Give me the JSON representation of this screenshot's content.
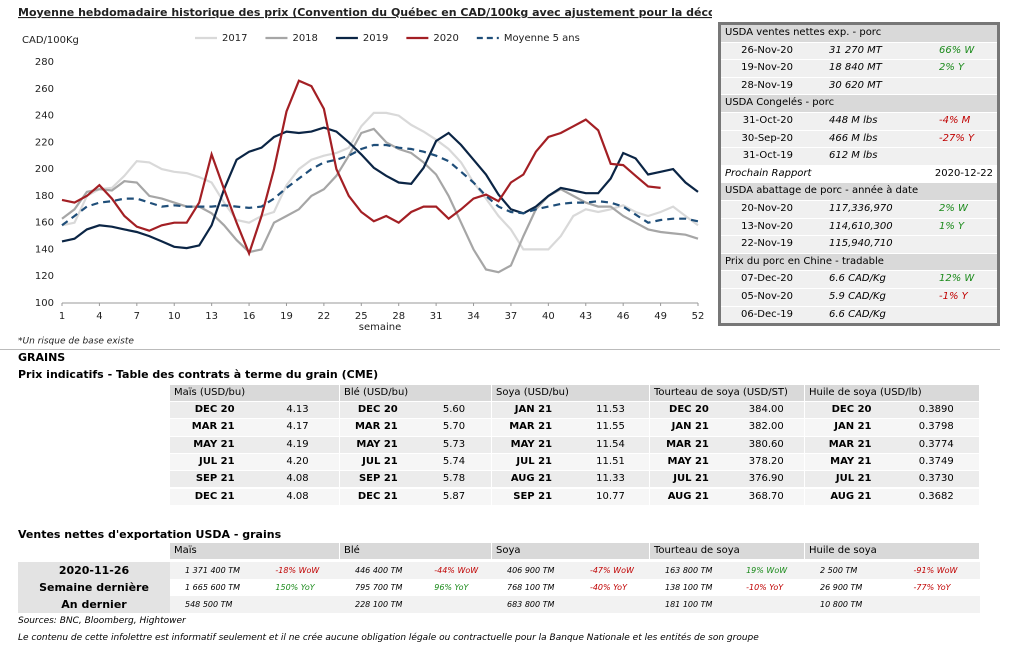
{
  "chart_data": {
    "type": "line",
    "title": "Moyenne hebdomadaire historique des prix (Convention du Québec en CAD/100kg avec ajustement pour la découpe)*",
    "y_label": "CAD/100Kg",
    "x_label": "semaine",
    "footnote": "*Un risque de base existe",
    "grid": false,
    "x": [
      1,
      2,
      3,
      4,
      5,
      6,
      7,
      8,
      9,
      10,
      11,
      12,
      13,
      14,
      15,
      16,
      17,
      18,
      19,
      20,
      21,
      22,
      23,
      24,
      25,
      26,
      27,
      28,
      29,
      30,
      31,
      32,
      33,
      34,
      35,
      36,
      37,
      38,
      39,
      40,
      41,
      42,
      43,
      44,
      45,
      46,
      47,
      48,
      49,
      50,
      51,
      52
    ],
    "xlim": [
      1,
      52
    ],
    "xticks": [
      1,
      4,
      7,
      10,
      13,
      16,
      19,
      22,
      25,
      28,
      31,
      34,
      37,
      40,
      43,
      46,
      49,
      52
    ],
    "ylim": [
      100,
      280
    ],
    "yticks": [
      100,
      120,
      140,
      160,
      180,
      200,
      220,
      240,
      260,
      280
    ],
    "series": [
      {
        "name": "2017",
        "color": "#d9d9d9",
        "line_style": "solid",
        "values": [
          158,
          160,
          180,
          185,
          186,
          195,
          206,
          205,
          200,
          198,
          197,
          194,
          190,
          175,
          162,
          160,
          165,
          168,
          188,
          200,
          207,
          210,
          212,
          216,
          232,
          242,
          242,
          240,
          233,
          228,
          222,
          215,
          205,
          190,
          178,
          165,
          155,
          140,
          140,
          140,
          150,
          165,
          170,
          168,
          170,
          173,
          168,
          165,
          168,
          172,
          165,
          158
        ]
      },
      {
        "name": "2018",
        "color": "#a6a6a6",
        "line_style": "solid",
        "values": [
          163,
          170,
          183,
          185,
          184,
          191,
          190,
          180,
          178,
          175,
          172,
          172,
          167,
          158,
          147,
          138,
          140,
          160,
          165,
          170,
          180,
          185,
          195,
          210,
          227,
          230,
          220,
          215,
          212,
          205,
          196,
          180,
          160,
          140,
          125,
          123,
          128,
          150,
          170,
          180,
          185,
          180,
          175,
          172,
          172,
          165,
          160,
          155,
          153,
          152,
          151,
          148
        ]
      },
      {
        "name": "2019",
        "color": "#0b2545",
        "line_style": "solid",
        "values": [
          146,
          148,
          155,
          158,
          157,
          155,
          153,
          150,
          146,
          142,
          141,
          143,
          158,
          185,
          207,
          213,
          216,
          224,
          228,
          227,
          228,
          231,
          228,
          220,
          211,
          201,
          195,
          190,
          189,
          201,
          221,
          227,
          218,
          207,
          196,
          181,
          170,
          167,
          172,
          180,
          186,
          184,
          182,
          182,
          193,
          212,
          208,
          196,
          198,
          200,
          190,
          183
        ]
      },
      {
        "name": "2020",
        "color": "#a31f24",
        "line_style": "solid",
        "values": [
          177,
          175,
          180,
          188,
          178,
          165,
          157,
          154,
          158,
          160,
          160,
          175,
          211,
          185,
          160,
          137,
          165,
          200,
          243,
          266,
          262,
          245,
          200,
          180,
          168,
          161,
          165,
          160,
          168,
          172,
          172,
          163,
          170,
          178,
          181,
          176,
          190,
          196,
          213,
          224,
          227,
          232,
          237,
          229,
          204,
          203,
          195,
          187,
          186,
          null,
          null,
          null
        ]
      },
      {
        "name": "Moyenne 5 ans",
        "color": "#1f4e79",
        "line_style": "dashed",
        "values": [
          158,
          165,
          172,
          175,
          176,
          178,
          178,
          175,
          172,
          173,
          172,
          172,
          172,
          173,
          172,
          171,
          172,
          178,
          186,
          193,
          200,
          205,
          207,
          210,
          215,
          218,
          218,
          216,
          215,
          213,
          210,
          206,
          198,
          190,
          180,
          172,
          168,
          167,
          170,
          172,
          174,
          175,
          175,
          176,
          175,
          172,
          166,
          160,
          162,
          163,
          163,
          161
        ]
      }
    ]
  },
  "side_panel": {
    "sections": [
      {
        "title": "USDA ventes nettes exp. - porc",
        "rows": [
          [
            "26-Nov-20",
            "31 270  MT",
            "66% W"
          ],
          [
            "19-Nov-20",
            "18 840  MT",
            "2% Y"
          ],
          [
            "28-Nov-19",
            "30 620  MT"
          ]
        ]
      },
      {
        "title": "USDA Congelés - porc",
        "rows": [
          [
            "31-Oct-20",
            "448 M lbs",
            "-4% M"
          ],
          [
            "30-Sep-20",
            "466 M lbs",
            "-27% Y"
          ],
          [
            "31-Oct-19",
            "612 M lbs"
          ]
        ],
        "note": [
          "Prochain Rapport",
          "2020-12-22"
        ]
      },
      {
        "title": "USDA abattage de porc - année à date",
        "rows": [
          [
            "20-Nov-20",
            "117,336,970",
            "2% W"
          ],
          [
            "13-Nov-20",
            "114,610,300",
            "1% Y"
          ],
          [
            "22-Nov-19",
            "115,940,710"
          ]
        ]
      },
      {
        "title": "Prix du porc en Chine - tradable",
        "rows": [
          [
            "07-Dec-20",
            "6.6 CAD/Kg",
            "12% W"
          ],
          [
            "05-Nov-20",
            "5.9 CAD/Kg",
            "-1% Y"
          ],
          [
            "06-Dec-19",
            "6.6 CAD/Kg"
          ]
        ]
      }
    ]
  },
  "grains": {
    "heading": "GRAINS",
    "futures_title": "Prix indicatifs - Table des contrats à terme du grain (CME)",
    "futures": [
      {
        "header": "Maïs (USD/bu)",
        "rows": [
          [
            "DEC 20",
            "4.13"
          ],
          [
            "MAR 21",
            "4.17"
          ],
          [
            "MAY 21",
            "4.19"
          ],
          [
            "JUL 21",
            "4.20"
          ],
          [
            "SEP 21",
            "4.08"
          ],
          [
            "DEC 21",
            "4.08"
          ]
        ]
      },
      {
        "header": "Blé (USD/bu)",
        "rows": [
          [
            "DEC 20",
            "5.60"
          ],
          [
            "MAR 21",
            "5.70"
          ],
          [
            "MAY 21",
            "5.73"
          ],
          [
            "JUL 21",
            "5.74"
          ],
          [
            "SEP 21",
            "5.78"
          ],
          [
            "DEC 21",
            "5.87"
          ]
        ]
      },
      {
        "header": "Soya (USD/bu)",
        "rows": [
          [
            "JAN 21",
            "11.53"
          ],
          [
            "MAR 21",
            "11.55"
          ],
          [
            "MAY 21",
            "11.54"
          ],
          [
            "JUL 21",
            "11.51"
          ],
          [
            "AUG 21",
            "11.33"
          ],
          [
            "SEP 21",
            "10.77"
          ]
        ]
      },
      {
        "header": "Tourteau de soya (USD/ST)",
        "rows": [
          [
            "DEC 20",
            "384.00"
          ],
          [
            "JAN 21",
            "382.00"
          ],
          [
            "MAR 21",
            "380.60"
          ],
          [
            "MAY 21",
            "378.20"
          ],
          [
            "JUL 21",
            "376.90"
          ],
          [
            "AUG 21",
            "368.70"
          ]
        ]
      },
      {
        "header": "Huile de soya (USD/lb)",
        "rows": [
          [
            "DEC 20",
            "0.3890"
          ],
          [
            "JAN 21",
            "0.3798"
          ],
          [
            "MAR 21",
            "0.3774"
          ],
          [
            "MAY 21",
            "0.3749"
          ],
          [
            "JUL 21",
            "0.3730"
          ],
          [
            "AUG 21",
            "0.3682"
          ]
        ]
      }
    ],
    "exports_title": "Ventes nettes d'exportation USDA - grains",
    "exports_headers": [
      "Maïs",
      "Blé",
      "Soya",
      "Tourteau de soya",
      "Huile de soya"
    ],
    "exports_rows": [
      {
        "label": "2020-11-26",
        "cells": [
          [
            "1 371 400 TM",
            "-18% WoW"
          ],
          [
            "446 400 TM",
            "-44% WoW"
          ],
          [
            "406 900 TM",
            "-47% WoW"
          ],
          [
            "163 800 TM",
            "19% WoW"
          ],
          [
            "2 500 TM",
            "-91% WoW"
          ]
        ]
      },
      {
        "label": "Semaine dernière",
        "cells": [
          [
            "1 665 600 TM",
            "150% YoY"
          ],
          [
            "795 700 TM",
            "96% YoY"
          ],
          [
            "768 100 TM",
            "-40% YoY"
          ],
          [
            "138 100 TM",
            "-10% YoY"
          ],
          [
            "26 900 TM",
            "-77% YoY"
          ]
        ]
      },
      {
        "label": "An dernier",
        "cells": [
          [
            "548 500 TM"
          ],
          [
            "228 100 TM"
          ],
          [
            "683 800 TM"
          ],
          [
            "181 100 TM"
          ],
          [
            "10 800 TM"
          ]
        ]
      }
    ]
  },
  "footer": {
    "sources": "Sources: BNC, Bloomberg, Hightower",
    "disclaimer": "Le contenu de cette infolettre est informatif seulement et il ne crée aucune obligation légale ou contractuelle pour la Banque Nationale et les entités de son groupe"
  }
}
